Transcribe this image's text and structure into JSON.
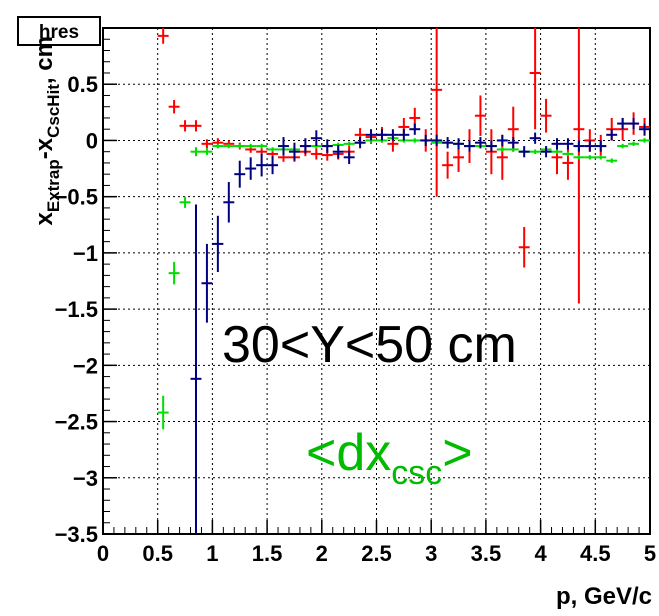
{
  "chart_data": {
    "type": "scatter",
    "hist_name": "hres",
    "xlabel": "p, GeV/c",
    "ylabel_parts": [
      "x",
      "Extrap",
      "-",
      "x",
      "CscHit",
      ", cm"
    ],
    "xlim": [
      0,
      5
    ],
    "ylim": [
      -3.5,
      1.0
    ],
    "x_ticks": [
      0,
      0.5,
      1,
      1.5,
      2,
      2.5,
      3,
      3.5,
      4,
      4.5,
      5
    ],
    "x_tick_labels": [
      "0",
      "0.5",
      "1",
      "1.5",
      "2",
      "2.5",
      "3",
      "3.5",
      "4",
      "4.5",
      "5"
    ],
    "y_ticks": [
      0.5,
      0,
      -0.5,
      -1,
      -1.5,
      -2,
      -2.5,
      -3,
      -3.5
    ],
    "y_tick_labels": [
      "0.5",
      "0",
      "−0.5",
      "−1",
      "−1.5",
      "−2",
      "−2.5",
      "−3",
      "−3.5"
    ],
    "grid": true,
    "bin_halfwidth": 0.05,
    "annotations": {
      "region": "30<Y<50 cm",
      "quantity_main": "<dx",
      "quantity_sub": "csc",
      "quantity_close": ">"
    },
    "series": [
      {
        "color": "#ff0000",
        "points": [
          [
            0.55,
            0.93,
            0.07
          ],
          [
            0.65,
            0.3,
            0.06
          ],
          [
            0.75,
            0.13,
            0.05
          ],
          [
            0.85,
            0.13,
            0.05
          ],
          [
            0.95,
            -0.03,
            0.04
          ],
          [
            1.05,
            -0.02,
            0.04
          ],
          [
            1.15,
            -0.03,
            0.03
          ],
          [
            1.25,
            -0.05,
            0.03
          ],
          [
            1.35,
            -0.08,
            0.03
          ],
          [
            1.45,
            -0.1,
            0.03
          ],
          [
            1.55,
            -0.12,
            0.04
          ],
          [
            1.65,
            -0.15,
            0.04
          ],
          [
            1.75,
            -0.15,
            0.04
          ],
          [
            1.85,
            -0.1,
            0.04
          ],
          [
            1.95,
            -0.12,
            0.05
          ],
          [
            2.05,
            -0.13,
            0.05
          ],
          [
            2.15,
            -0.12,
            0.05
          ],
          [
            2.25,
            -0.1,
            0.05
          ],
          [
            2.35,
            0.05,
            0.06
          ],
          [
            2.45,
            0.03,
            0.06
          ],
          [
            2.55,
            0.05,
            0.07
          ],
          [
            2.65,
            -0.03,
            0.07
          ],
          [
            2.75,
            0.12,
            0.08
          ],
          [
            2.85,
            0.2,
            0.09
          ],
          [
            2.95,
            0.0,
            0.1
          ],
          [
            3.05,
            0.45,
            0.95
          ],
          [
            3.15,
            -0.22,
            0.12
          ],
          [
            3.25,
            -0.15,
            0.13
          ],
          [
            3.35,
            -0.05,
            0.15
          ],
          [
            3.45,
            0.22,
            0.18
          ],
          [
            3.55,
            -0.1,
            0.2
          ],
          [
            3.65,
            -0.15,
            0.2
          ],
          [
            3.75,
            0.1,
            0.2
          ],
          [
            3.85,
            -0.95,
            0.18
          ],
          [
            3.95,
            0.6,
            0.5
          ],
          [
            4.05,
            0.22,
            0.15
          ],
          [
            4.15,
            -0.15,
            0.15
          ],
          [
            4.25,
            -0.2,
            0.15
          ],
          [
            4.35,
            0.1,
            1.55
          ],
          [
            4.45,
            0.0,
            0.1
          ],
          [
            4.55,
            -0.05,
            0.1
          ],
          [
            4.65,
            0.1,
            0.1
          ],
          [
            4.75,
            0.1,
            0.1
          ],
          [
            4.85,
            0.15,
            0.1
          ],
          [
            4.95,
            0.12,
            0.08
          ]
        ]
      },
      {
        "color": "#00dd00",
        "points": [
          [
            0.55,
            -2.42,
            0.15
          ],
          [
            0.65,
            -1.18,
            0.1
          ],
          [
            0.75,
            -0.55,
            0.05
          ],
          [
            0.85,
            -0.1,
            0.04
          ],
          [
            0.95,
            -0.1,
            0.03
          ],
          [
            1.05,
            -0.05,
            0.02
          ],
          [
            1.15,
            -0.05,
            0.02
          ],
          [
            1.25,
            -0.05,
            0.02
          ],
          [
            1.35,
            -0.05,
            0.02
          ],
          [
            1.45,
            -0.05,
            0.02
          ],
          [
            1.55,
            -0.08,
            0.02
          ],
          [
            1.65,
            -0.08,
            0.02
          ],
          [
            1.75,
            -0.08,
            0.02
          ],
          [
            1.85,
            -0.05,
            0.02
          ],
          [
            1.95,
            -0.05,
            0.02
          ],
          [
            2.05,
            -0.05,
            0.02
          ],
          [
            2.15,
            -0.04,
            0.02
          ],
          [
            2.25,
            -0.03,
            0.02
          ],
          [
            2.35,
            -0.02,
            0.02
          ],
          [
            2.45,
            0.0,
            0.02
          ],
          [
            2.55,
            0.0,
            0.02
          ],
          [
            2.65,
            0.02,
            0.02
          ],
          [
            2.75,
            0.0,
            0.02
          ],
          [
            2.85,
            0.0,
            0.02
          ],
          [
            2.95,
            0.0,
            0.02
          ],
          [
            3.05,
            -0.02,
            0.02
          ],
          [
            3.15,
            -0.02,
            0.02
          ],
          [
            3.25,
            -0.03,
            0.02
          ],
          [
            3.35,
            -0.05,
            0.02
          ],
          [
            3.45,
            -0.05,
            0.02
          ],
          [
            3.55,
            -0.05,
            0.02
          ],
          [
            3.65,
            -0.08,
            0.02
          ],
          [
            3.75,
            -0.08,
            0.02
          ],
          [
            3.85,
            -0.1,
            0.02
          ],
          [
            3.95,
            -0.1,
            0.02
          ],
          [
            4.05,
            -0.08,
            0.02
          ],
          [
            4.15,
            -0.1,
            0.02
          ],
          [
            4.25,
            -0.12,
            0.02
          ],
          [
            4.35,
            -0.15,
            0.02
          ],
          [
            4.45,
            -0.15,
            0.02
          ],
          [
            4.55,
            -0.15,
            0.02
          ],
          [
            4.65,
            -0.18,
            0.02
          ],
          [
            4.75,
            -0.05,
            0.02
          ],
          [
            4.85,
            -0.03,
            0.02
          ],
          [
            4.95,
            0.0,
            0.02
          ]
        ]
      },
      {
        "color": "#000080",
        "points": [
          [
            0.85,
            -2.12,
            1.55
          ],
          [
            0.95,
            -1.27,
            0.35
          ],
          [
            1.05,
            -0.92,
            0.25
          ],
          [
            1.15,
            -0.55,
            0.18
          ],
          [
            1.25,
            -0.3,
            0.12
          ],
          [
            1.35,
            -0.25,
            0.1
          ],
          [
            1.45,
            -0.22,
            0.1
          ],
          [
            1.55,
            -0.22,
            0.08
          ],
          [
            1.65,
            -0.05,
            0.08
          ],
          [
            1.75,
            -0.1,
            0.08
          ],
          [
            1.85,
            -0.05,
            0.07
          ],
          [
            1.95,
            0.02,
            0.07
          ],
          [
            2.05,
            -0.05,
            0.06
          ],
          [
            2.15,
            -0.1,
            0.06
          ],
          [
            2.25,
            -0.15,
            0.06
          ],
          [
            2.35,
            -0.02,
            0.05
          ],
          [
            2.45,
            0.05,
            0.05
          ],
          [
            2.55,
            0.05,
            0.05
          ],
          [
            2.65,
            0.05,
            0.05
          ],
          [
            2.75,
            0.05,
            0.05
          ],
          [
            2.85,
            0.1,
            0.05
          ],
          [
            2.95,
            0.0,
            0.05
          ],
          [
            3.05,
            0.0,
            0.05
          ],
          [
            3.15,
            -0.02,
            0.05
          ],
          [
            3.25,
            -0.03,
            0.05
          ],
          [
            3.35,
            -0.05,
            0.05
          ],
          [
            3.45,
            -0.02,
            0.05
          ],
          [
            3.55,
            -0.05,
            0.05
          ],
          [
            3.65,
            0.0,
            0.05
          ],
          [
            3.75,
            -0.02,
            0.05
          ],
          [
            3.85,
            -0.1,
            0.05
          ],
          [
            3.95,
            0.02,
            0.05
          ],
          [
            4.05,
            -0.1,
            0.05
          ],
          [
            4.15,
            -0.03,
            0.05
          ],
          [
            4.25,
            -0.03,
            0.05
          ],
          [
            4.35,
            -0.05,
            0.05
          ],
          [
            4.45,
            -0.05,
            0.05
          ],
          [
            4.55,
            -0.05,
            0.05
          ],
          [
            4.65,
            0.05,
            0.05
          ],
          [
            4.75,
            0.15,
            0.05
          ],
          [
            4.85,
            0.15,
            0.05
          ],
          [
            4.95,
            0.1,
            0.05
          ]
        ]
      }
    ]
  }
}
